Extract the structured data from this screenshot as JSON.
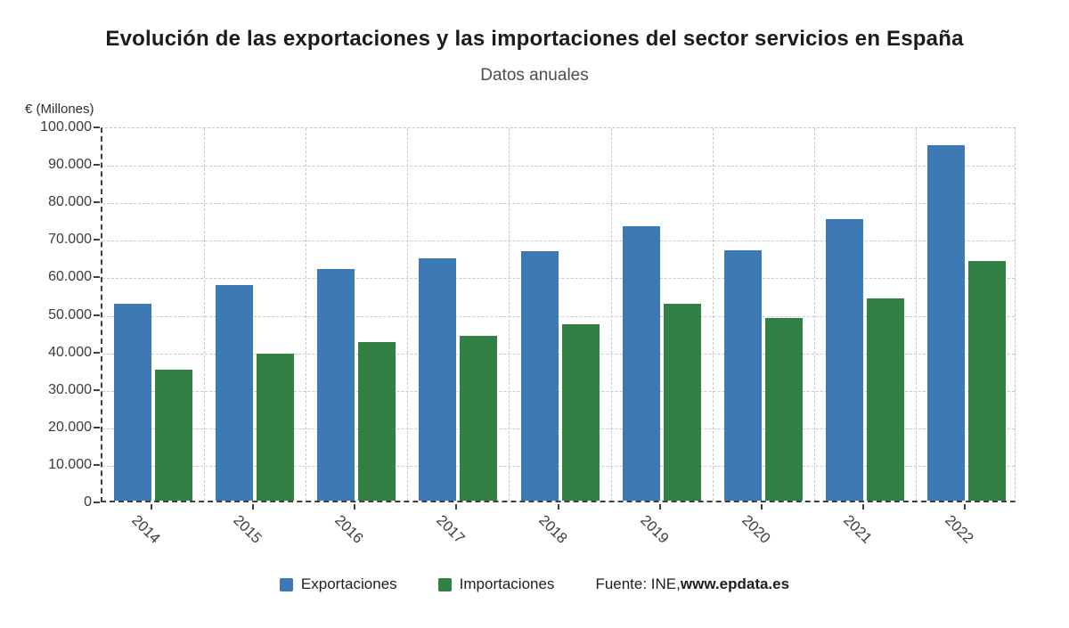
{
  "title": "Evolución de las exportaciones y las importaciones del sector servicios en España",
  "subtitle": "Datos anuales",
  "source_prefix": "Fuente: INE, ",
  "source_site": "www.epdata.es",
  "chart_data": {
    "type": "bar",
    "title": "Evolución de las exportaciones y las importaciones del sector servicios en España",
    "subtitle": "Datos anuales",
    "ylabel": "€ (Millones)",
    "xlabel": "",
    "categories": [
      "2014",
      "2015",
      "2016",
      "2017",
      "2018",
      "2019",
      "2020",
      "2021",
      "2022"
    ],
    "series": [
      {
        "name": "Exportaciones",
        "color": "#3d7ab5",
        "values": [
          52500,
          57400,
          61800,
          64500,
          66600,
          73200,
          66800,
          75000,
          94800
        ]
      },
      {
        "name": "Importaciones",
        "color": "#338044",
        "values": [
          35000,
          39300,
          42200,
          44000,
          47000,
          52600,
          48600,
          53900,
          63900
        ]
      }
    ],
    "ylim": [
      0,
      100000
    ],
    "ytick_step": 10000,
    "ytick_labels": [
      "0",
      "10.000",
      "20.000",
      "30.000",
      "40.000",
      "50.000",
      "60.000",
      "70.000",
      "80.000",
      "90.000",
      "100.000"
    ],
    "grid": true,
    "legend_position": "bottom"
  }
}
